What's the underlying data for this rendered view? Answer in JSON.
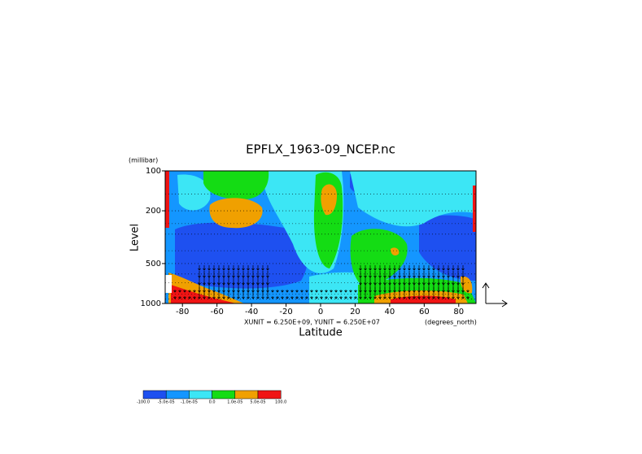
{
  "chart_data": {
    "type": "contour",
    "title": "EPFLX_1963-09_NCEP.nc",
    "x_label": "Latitude",
    "y_label": "Level",
    "y_units": "(millibar)",
    "x_units": "(degrees_north)",
    "vector_note": "XUNIT = 6.250E+09, YUNIT = 6.250E+07",
    "xlim": [
      -90,
      90
    ],
    "xticks": [
      -80,
      -60,
      -40,
      -20,
      0,
      20,
      40,
      60,
      80
    ],
    "ylim": [
      1000,
      100
    ],
    "y_log": true,
    "yticks": [
      100,
      200,
      500,
      1000
    ],
    "colorbar": {
      "levels": [
        {
          "value": -100,
          "label": "-100.0"
        },
        {
          "value": -5e-05,
          "label": "-5.0e-05"
        },
        {
          "value": -1e-05,
          "label": "-1.0e-05"
        },
        {
          "value": 0,
          "label": "0.0"
        },
        {
          "value": 1e-05,
          "label": "1.0e-05"
        },
        {
          "value": 5e-05,
          "label": "5.0e-05"
        },
        {
          "value": 100,
          "label": "100.0"
        }
      ],
      "colors": [
        "#1e50f0",
        "#1496ff",
        "#3ce6f5",
        "#14dc14",
        "#f0a000",
        "#f01414"
      ]
    }
  }
}
